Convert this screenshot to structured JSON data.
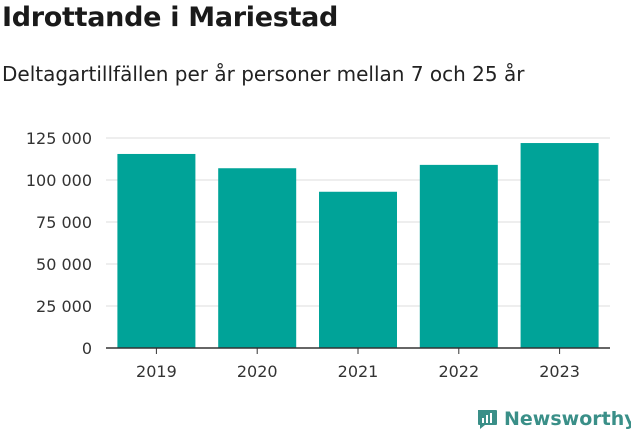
{
  "title": "Idrottande i Mariestad",
  "subtitle": "Deltagartillfällen per år personer mellan 7 och 25 år",
  "brand": {
    "name": "Newsworthy",
    "icon": "newsworthy-logo-icon"
  },
  "colors": {
    "bar": "#00a398",
    "grid": "#dddddd",
    "axis": "#333333",
    "text": "#1a1a1a",
    "brand": "#3a8f88"
  },
  "chart_data": {
    "type": "bar",
    "categories": [
      "2019",
      "2020",
      "2021",
      "2022",
      "2023"
    ],
    "values": [
      115500,
      107000,
      93000,
      109000,
      122000
    ],
    "yticks": [
      0,
      25000,
      50000,
      75000,
      100000,
      125000
    ],
    "ytick_labels": [
      "0",
      "25 000",
      "50 000",
      "75 000",
      "100 000",
      "125 000"
    ],
    "ylim": [
      0,
      125000
    ],
    "grid": true
  }
}
